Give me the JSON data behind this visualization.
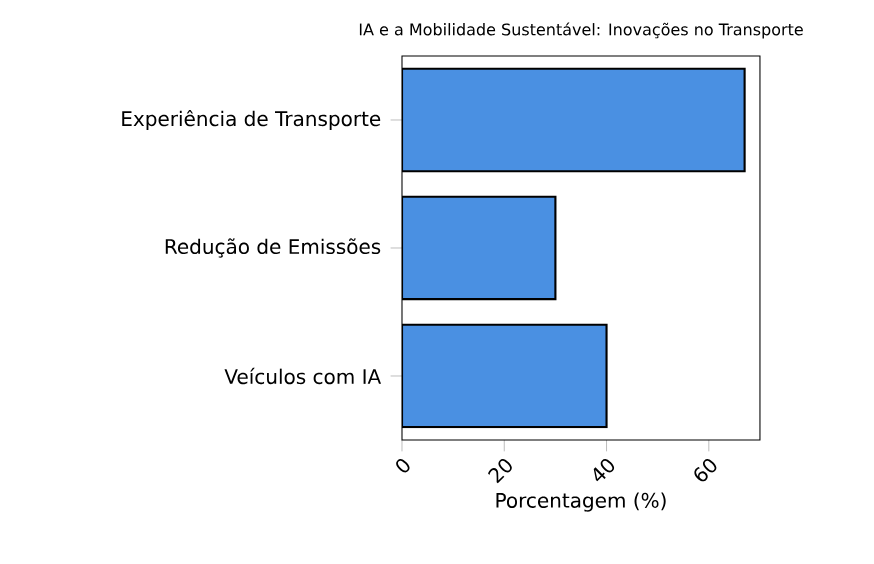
{
  "chart_data": {
    "type": "bar",
    "orientation": "horizontal",
    "title": "IA e a Mobilidade Sustentável: Inovações no Transporte",
    "xlabel": "Porcentagem (%)",
    "categories": [
      "Experiência de Transporte",
      "Redução de Emissões",
      "Veículos com IA"
    ],
    "values": [
      67,
      30,
      40
    ],
    "color": "#4a90e2",
    "xlim": [
      0,
      70
    ],
    "xticks": [
      0,
      20,
      40,
      60
    ]
  }
}
